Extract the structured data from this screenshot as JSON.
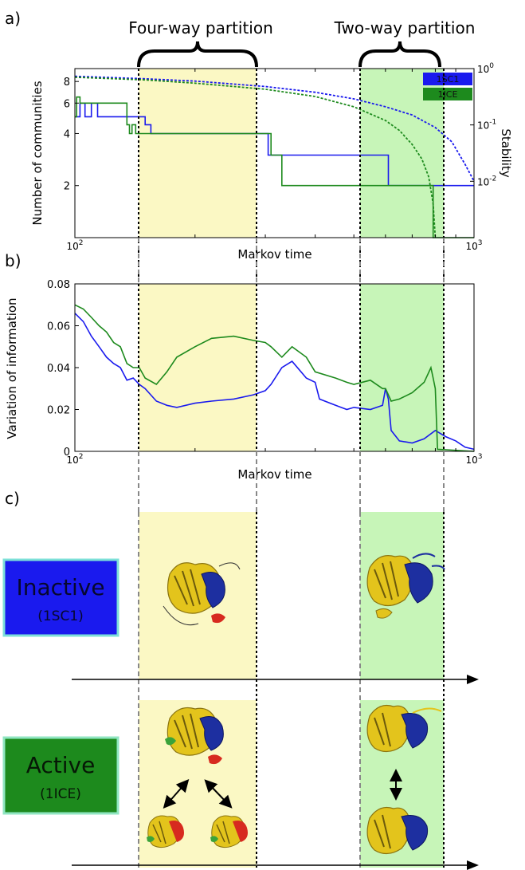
{
  "panels": {
    "a": "a)",
    "b": "b)",
    "c": "c)"
  },
  "headers": {
    "four_way": "Four-way partition",
    "two_way": "Two-way partition"
  },
  "colors": {
    "inactive": "#1a1aee",
    "active": "#1d8a1d",
    "four_way_band": "#fbf8c4",
    "two_way_band": "#c7f5b8",
    "inactive_box_border": "#7de0d8",
    "active_box_border": "#90e6c2",
    "protein_yellow": "#e3c41c",
    "protein_blue": "#1d2fa0",
    "protein_red": "#d72a1f",
    "protein_green": "#3aa33a"
  },
  "chart_data": [
    {
      "id": "a",
      "type": "line",
      "xlabel": "Markov time",
      "ylabel": "Number of communities",
      "ylabel_right": "Stability",
      "x_scale": "log",
      "xlim": [
        100,
        1000
      ],
      "x_ticks": [
        {
          "value": 100,
          "base": "10",
          "exp": "2"
        },
        {
          "value": 1000,
          "base": "10",
          "exp": "3"
        }
      ],
      "y_scale": "log",
      "ylim": [
        1,
        9.5
      ],
      "y_ticks": [
        2,
        4,
        6,
        8
      ],
      "y2_scale": "log",
      "y2lim": [
        0.001,
        1
      ],
      "y2_ticks": [
        {
          "value": 1,
          "base": "10",
          "exp": "0"
        },
        {
          "value": 0.1,
          "base": "10",
          "exp": "-1"
        },
        {
          "value": 0.01,
          "base": "10",
          "exp": "-2"
        }
      ],
      "legend": {
        "position": "top-right",
        "entries": [
          {
            "label": "1SC1",
            "color": "#1a1aee"
          },
          {
            "label": "1ICE",
            "color": "#1d8a1d"
          }
        ]
      },
      "series": [
        {
          "name": "1SC1",
          "axis": "left",
          "style": "step",
          "color": "#1a1aee",
          "x": [
            100,
            103,
            106,
            110,
            114,
            118,
            124,
            129,
            136,
            145,
            150,
            155,
            176,
            186,
            200,
            230,
            260,
            300,
            305,
            330,
            400,
            500,
            600,
            610,
            800,
            850,
            1000
          ],
          "y": [
            5,
            6,
            5,
            6,
            5,
            5,
            5,
            5,
            5,
            5,
            4.5,
            4,
            4,
            4,
            4,
            4,
            4,
            4,
            3,
            3,
            3,
            3,
            3,
            2,
            2,
            2,
            2
          ]
        },
        {
          "name": "1ICE",
          "axis": "left",
          "style": "step",
          "color": "#1d8a1d",
          "x": [
            100,
            101,
            103,
            107,
            120,
            129,
            135,
            137,
            139,
            142,
            150,
            200,
            250,
            300,
            310,
            330,
            400,
            500,
            600,
            700,
            784,
            790,
            820,
            1000
          ],
          "y": [
            5,
            6.5,
            6,
            6,
            6,
            6,
            4.5,
            4,
            4.5,
            4,
            4,
            4,
            4,
            4,
            3,
            2,
            2,
            2,
            2,
            2,
            2,
            1,
            1,
            1
          ]
        },
        {
          "name": "1SC1",
          "axis": "right",
          "style": "dashed",
          "color": "#1a1aee",
          "x": [
            100,
            150,
            200,
            300,
            400,
            500,
            600,
            700,
            800,
            880,
            950,
            1000
          ],
          "y": [
            0.73,
            0.66,
            0.6,
            0.48,
            0.38,
            0.29,
            0.21,
            0.15,
            0.09,
            0.05,
            0.02,
            0.01
          ]
        },
        {
          "name": "1ICE",
          "axis": "right",
          "style": "dashed",
          "color": "#1d8a1d",
          "x": [
            100,
            150,
            200,
            300,
            400,
            500,
            600,
            650,
            700,
            740,
            770,
            790,
            800
          ],
          "y": [
            0.7,
            0.63,
            0.55,
            0.43,
            0.32,
            0.21,
            0.12,
            0.08,
            0.045,
            0.025,
            0.012,
            0.004,
            0.001
          ]
        }
      ]
    },
    {
      "id": "b",
      "type": "line",
      "xlabel": "Markov time",
      "ylabel": "Variation of information",
      "x_scale": "log",
      "xlim": [
        100,
        1000
      ],
      "x_ticks": [
        {
          "value": 100,
          "base": "10",
          "exp": "2"
        },
        {
          "value": 1000,
          "base": "10",
          "exp": "3"
        }
      ],
      "ylim": [
        0,
        0.08
      ],
      "y_ticks": [
        {
          "value": 0,
          "label": "0"
        },
        {
          "value": 0.02,
          "label": "0.02"
        },
        {
          "value": 0.04,
          "label": "0.04"
        },
        {
          "value": 0.06,
          "label": "0.06"
        },
        {
          "value": 0.08,
          "label": "0.08"
        }
      ],
      "series": [
        {
          "name": "1SC1",
          "color": "#1a1aee",
          "x": [
            100,
            105,
            110,
            115,
            120,
            125,
            130,
            135,
            140,
            145,
            150,
            160,
            170,
            180,
            200,
            220,
            250,
            280,
            300,
            310,
            330,
            350,
            380,
            400,
            410,
            450,
            480,
            500,
            550,
            590,
            600,
            610,
            620,
            650,
            700,
            750,
            800,
            850,
            900,
            950,
            1000
          ],
          "y": [
            0.066,
            0.062,
            0.055,
            0.05,
            0.045,
            0.042,
            0.04,
            0.034,
            0.035,
            0.032,
            0.03,
            0.024,
            0.022,
            0.021,
            0.023,
            0.024,
            0.025,
            0.027,
            0.029,
            0.032,
            0.04,
            0.043,
            0.035,
            0.033,
            0.025,
            0.022,
            0.02,
            0.021,
            0.02,
            0.022,
            0.03,
            0.025,
            0.01,
            0.005,
            0.004,
            0.006,
            0.01,
            0.007,
            0.005,
            0.002,
            0.001
          ]
        },
        {
          "name": "1ICE",
          "color": "#1d8a1d",
          "x": [
            100,
            105,
            110,
            115,
            120,
            125,
            130,
            135,
            140,
            145,
            150,
            160,
            170,
            180,
            200,
            220,
            250,
            280,
            300,
            310,
            330,
            350,
            380,
            400,
            450,
            480,
            500,
            550,
            590,
            600,
            610,
            620,
            650,
            700,
            750,
            780,
            790,
            800,
            810,
            1000
          ],
          "y": [
            0.07,
            0.068,
            0.064,
            0.06,
            0.057,
            0.052,
            0.05,
            0.042,
            0.04,
            0.04,
            0.035,
            0.032,
            0.038,
            0.045,
            0.05,
            0.054,
            0.055,
            0.053,
            0.052,
            0.05,
            0.045,
            0.05,
            0.045,
            0.038,
            0.035,
            0.033,
            0.032,
            0.034,
            0.03,
            0.03,
            0.027,
            0.024,
            0.025,
            0.028,
            0.033,
            0.04,
            0.035,
            0.03,
            0.001,
            0
          ]
        }
      ]
    }
  ],
  "timeline": {
    "inactive": {
      "title": "Inactive",
      "subtitle": "(1SC1)"
    },
    "active": {
      "title": "Active",
      "subtitle": "(1ICE)"
    }
  }
}
